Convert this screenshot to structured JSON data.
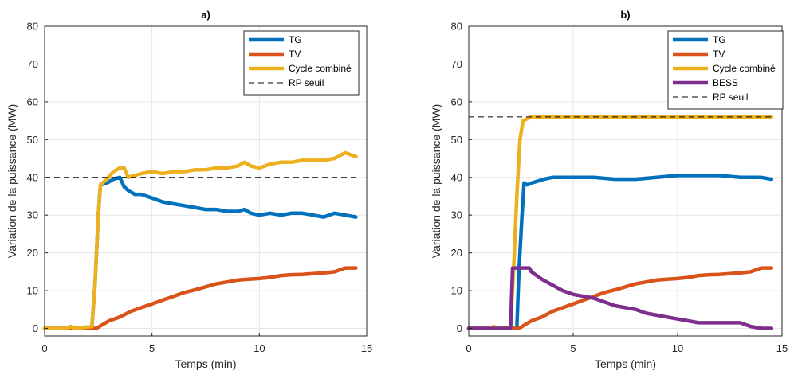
{
  "chart_data": [
    {
      "type": "line",
      "title": "a)",
      "xlabel": "Temps (min)",
      "ylabel": "Variation de la puissance (MW)",
      "xlim": [
        0,
        15
      ],
      "ylim": [
        -2,
        80
      ],
      "xticks": [
        0,
        5,
        10,
        15
      ],
      "yticks": [
        0,
        10,
        20,
        30,
        40,
        50,
        60,
        70,
        80
      ],
      "grid": true,
      "legend_position": "top-right",
      "series": [
        {
          "name": "TG",
          "color": "#0072BD",
          "x": [
            0,
            1.0,
            1.2,
            1.4,
            2.2,
            2.35,
            2.5,
            2.6,
            2.9,
            3.2,
            3.5,
            3.7,
            3.9,
            4.2,
            4.5,
            5.0,
            5.5,
            6.0,
            6.5,
            7.0,
            7.5,
            8.0,
            8.5,
            9.0,
            9.3,
            9.6,
            10.0,
            10.5,
            11.0,
            11.5,
            12.0,
            12.5,
            13.0,
            13.5,
            14.0,
            14.5
          ],
          "y": [
            0,
            0,
            0.5,
            0,
            0.5,
            12,
            30,
            38,
            38.5,
            39.5,
            40,
            37.5,
            36.5,
            35.5,
            35.5,
            34.5,
            33.5,
            33,
            32.5,
            32,
            31.5,
            31.5,
            31,
            31,
            31.5,
            30.5,
            30,
            30.5,
            30,
            30.5,
            30.5,
            30,
            29.5,
            30.5,
            30,
            29.5
          ]
        },
        {
          "name": "TV",
          "color": "#D95319",
          "x": [
            0,
            2.4,
            2.7,
            3.0,
            3.5,
            4.0,
            4.5,
            5.0,
            5.5,
            6.0,
            6.5,
            7.0,
            7.5,
            8.0,
            8.5,
            9.0,
            9.5,
            10.0,
            10.5,
            11.0,
            11.5,
            12.0,
            12.5,
            13.0,
            13.5,
            14.0,
            14.5
          ],
          "y": [
            0,
            0,
            1,
            2,
            3,
            4.5,
            5.5,
            6.5,
            7.5,
            8.5,
            9.5,
            10.2,
            11,
            11.8,
            12.3,
            12.8,
            13,
            13.2,
            13.5,
            14,
            14.2,
            14.3,
            14.5,
            14.7,
            15,
            16,
            16
          ]
        },
        {
          "name": "Cycle combiné",
          "color": "#EDB120",
          "x": [
            0,
            1.0,
            1.2,
            1.4,
            2.2,
            2.35,
            2.5,
            2.6,
            2.9,
            3.2,
            3.5,
            3.7,
            3.9,
            4.2,
            4.5,
            5.0,
            5.5,
            6.0,
            6.5,
            7.0,
            7.5,
            8.0,
            8.5,
            9.0,
            9.3,
            9.6,
            10.0,
            10.5,
            11.0,
            11.5,
            12.0,
            12.5,
            13.0,
            13.5,
            14.0,
            14.5
          ],
          "y": [
            0,
            0,
            0.5,
            0,
            0.5,
            12,
            30,
            38,
            39.5,
            41.5,
            42.5,
            42.5,
            40,
            40.5,
            41,
            41.5,
            41,
            41.5,
            41.5,
            42,
            42,
            42.5,
            42.5,
            43,
            44,
            43,
            42.5,
            43.5,
            44,
            44,
            44.5,
            44.5,
            44.5,
            45,
            46.5,
            45.5
          ]
        },
        {
          "name": "RP seuil",
          "color": "#000000",
          "dashed": true,
          "x": [
            0,
            14.5
          ],
          "y": [
            40,
            40
          ]
        }
      ]
    },
    {
      "type": "line",
      "title": "b)",
      "xlabel": "Temps (min)",
      "ylabel": "Variation de la puissance (MW)",
      "xlim": [
        0,
        15
      ],
      "ylim": [
        -2,
        80
      ],
      "xticks": [
        0,
        5,
        10,
        15
      ],
      "yticks": [
        0,
        10,
        20,
        30,
        40,
        50,
        60,
        70,
        80
      ],
      "grid": true,
      "legend_position": "top-right",
      "series": [
        {
          "name": "TG",
          "color": "#0072BD",
          "x": [
            0,
            2.3,
            2.4,
            2.55,
            2.65,
            2.8,
            3.0,
            3.3,
            3.6,
            4.0,
            5.0,
            6.0,
            7.0,
            8.0,
            9.0,
            10.0,
            11.0,
            12.0,
            13.0,
            14.0,
            14.5
          ],
          "y": [
            0,
            0,
            15,
            30,
            38.5,
            38,
            38.5,
            39,
            39.5,
            40,
            40,
            40,
            39.5,
            39.5,
            40,
            40.5,
            40.5,
            40.5,
            40,
            40,
            39.5
          ]
        },
        {
          "name": "TV",
          "color": "#D95319",
          "x": [
            0,
            2.4,
            2.7,
            3.0,
            3.5,
            4.0,
            4.5,
            5.0,
            5.5,
            6.0,
            6.5,
            7.0,
            7.5,
            8.0,
            8.5,
            9.0,
            9.5,
            10.0,
            10.5,
            11.0,
            11.5,
            12.0,
            12.5,
            13.0,
            13.5,
            14.0,
            14.5
          ],
          "y": [
            0,
            0,
            1,
            2,
            3,
            4.5,
            5.5,
            6.5,
            7.5,
            8.5,
            9.5,
            10.2,
            11,
            11.8,
            12.3,
            12.8,
            13,
            13.2,
            13.5,
            14,
            14.2,
            14.3,
            14.5,
            14.7,
            15,
            16,
            16
          ]
        },
        {
          "name": "Cycle combiné",
          "color": "#EDB120",
          "x": [
            0,
            1.0,
            1.2,
            1.4,
            2.0,
            2.15,
            2.3,
            2.45,
            2.6,
            2.8,
            3.0,
            5.0,
            8.0,
            11.0,
            14.5
          ],
          "y": [
            0,
            0,
            0.5,
            0,
            0,
            16,
            35,
            50,
            55,
            55.5,
            56,
            56,
            56,
            56,
            56
          ]
        },
        {
          "name": "BESS",
          "color": "#7E2F8E",
          "x": [
            0,
            2.0,
            2.1,
            2.5,
            2.9,
            3.0,
            3.5,
            4.0,
            4.5,
            5.0,
            5.5,
            6.0,
            6.5,
            7.0,
            7.5,
            8.0,
            8.5,
            9.0,
            9.5,
            10.0,
            10.5,
            11.0,
            11.5,
            12.0,
            12.5,
            13.0,
            13.5,
            14.0,
            14.5
          ],
          "y": [
            0,
            0,
            16,
            16,
            16,
            15,
            13,
            11.5,
            10,
            9,
            8.5,
            8,
            7,
            6,
            5.5,
            5,
            4,
            3.5,
            3,
            2.5,
            2,
            1.5,
            1.5,
            1.5,
            1.5,
            1.5,
            0.5,
            0,
            0
          ]
        },
        {
          "name": "RP seuil",
          "color": "#000000",
          "dashed": true,
          "x": [
            0,
            14.5
          ],
          "y": [
            56,
            56
          ]
        }
      ]
    }
  ]
}
